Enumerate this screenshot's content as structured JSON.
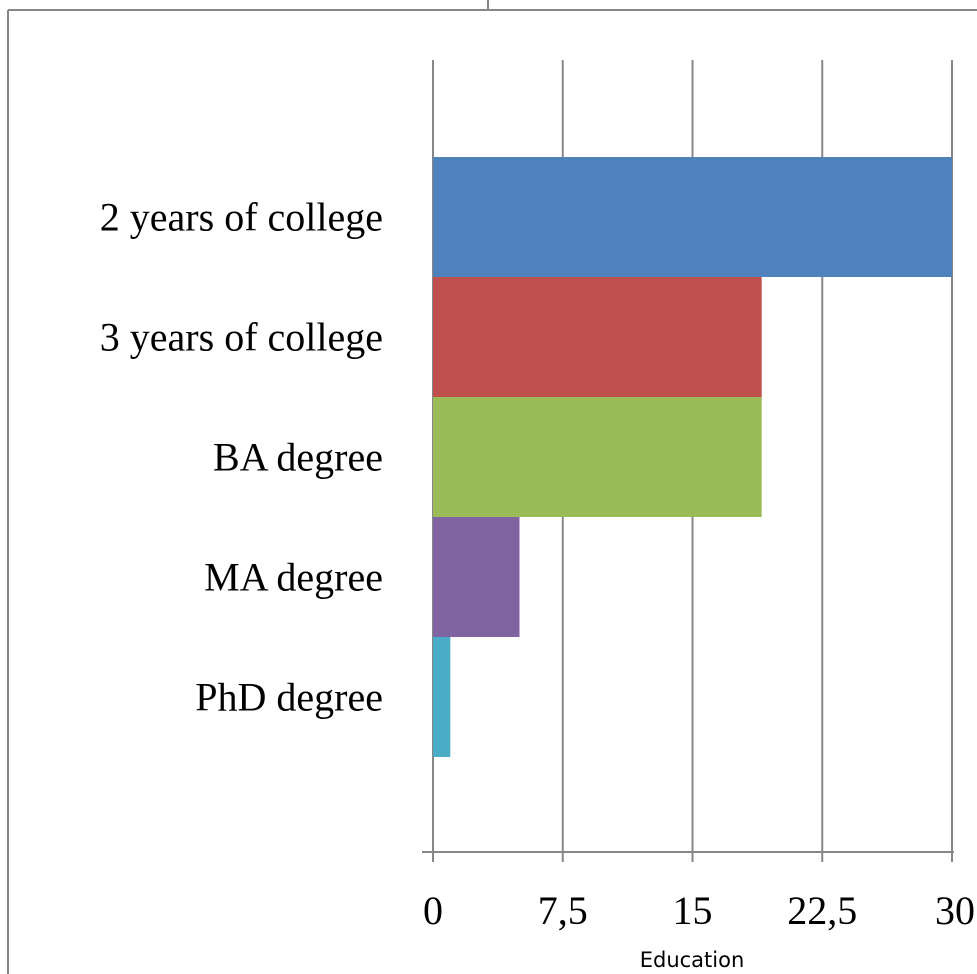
{
  "chart_data": {
    "type": "bar",
    "orientation": "horizontal",
    "categories": [
      "2 years of college",
      "3 years of college",
      "BA degree",
      "MA degree",
      "PhD degree"
    ],
    "values": [
      30,
      19,
      19,
      5,
      1
    ],
    "colors": [
      "#4f81bd",
      "#c0504d",
      "#9bbb59",
      "#8064a2",
      "#4bacc6"
    ],
    "xlim": [
      0,
      30
    ],
    "x_ticks": [
      0,
      7.5,
      15,
      22.5,
      30
    ],
    "x_tick_labels": [
      "0",
      "7,5",
      "15",
      "22,5",
      "30"
    ],
    "xlabel": "Education",
    "grid": true,
    "legend": "none"
  }
}
